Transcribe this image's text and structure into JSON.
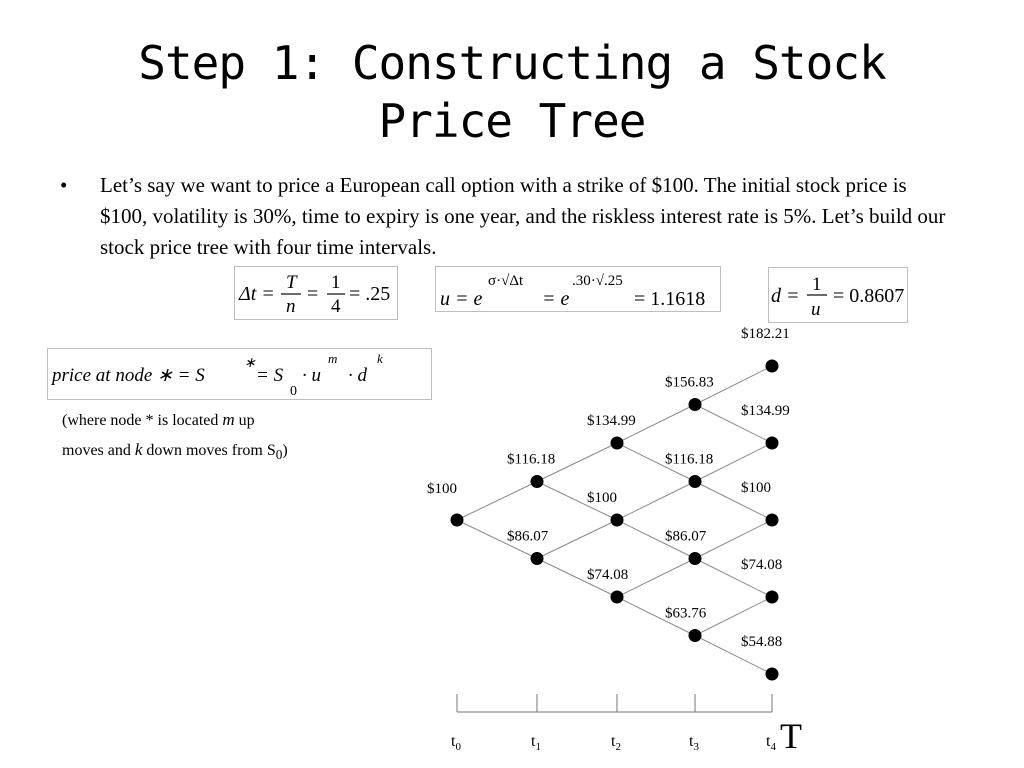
{
  "slide": {
    "title_line1": "Step 1: Constructing a Stock",
    "title_line2": "Price Tree",
    "bullet": "Let’s say we want to price a European call option with a strike of $100. The initial stock price is $100, volatility is 30%, time to expiry is one year, and the riskless interest rate is 5%. Let’s build our stock price tree with four time intervals."
  },
  "formulas": {
    "dt": {
      "lhs": "Δt =",
      "num1": "T",
      "den1": "n",
      "eq": "=",
      "num2": "1",
      "den2": "4",
      "result": "= .25"
    },
    "u": {
      "lhs": "u = e",
      "exp1": "σ·√Δt",
      "mid": "= e",
      "exp2": ".30·√.25",
      "result": "= 1.1618"
    },
    "d": {
      "lhs": "d =",
      "num": "1",
      "den": "u",
      "result": "= 0.8607"
    },
    "price_node": {
      "text": "price at node ∗ = S",
      "star": "∗",
      "eq": "= S",
      "sub": "0",
      "u": "· u",
      "m": "m",
      "d": "· d",
      "k": "k"
    }
  },
  "note": {
    "part1": "(where node * is located ",
    "m": "m",
    "part2": " up",
    "part3": "moves and ",
    "k": "k",
    "part4": " down moves from S",
    "sub": "0",
    "part5": ")"
  },
  "tree": {
    "nodes": [
      {
        "label": "$100"
      },
      {
        "label": "$116.18"
      },
      {
        "label": "$86.07"
      },
      {
        "label": "$134.99"
      },
      {
        "label": "$100"
      },
      {
        "label": "$74.08"
      },
      {
        "label": "$156.83"
      },
      {
        "label": "$116.18"
      },
      {
        "label": "$86.07"
      },
      {
        "label": "$63.76"
      },
      {
        "label": "$182.21"
      },
      {
        "label": "$134.99"
      },
      {
        "label": "$100"
      },
      {
        "label": "$74.08"
      },
      {
        "label": "$54.88"
      }
    ],
    "time_labels": [
      "t0",
      "t1",
      "t2",
      "t3",
      "t4"
    ],
    "maturity_label": "T"
  }
}
